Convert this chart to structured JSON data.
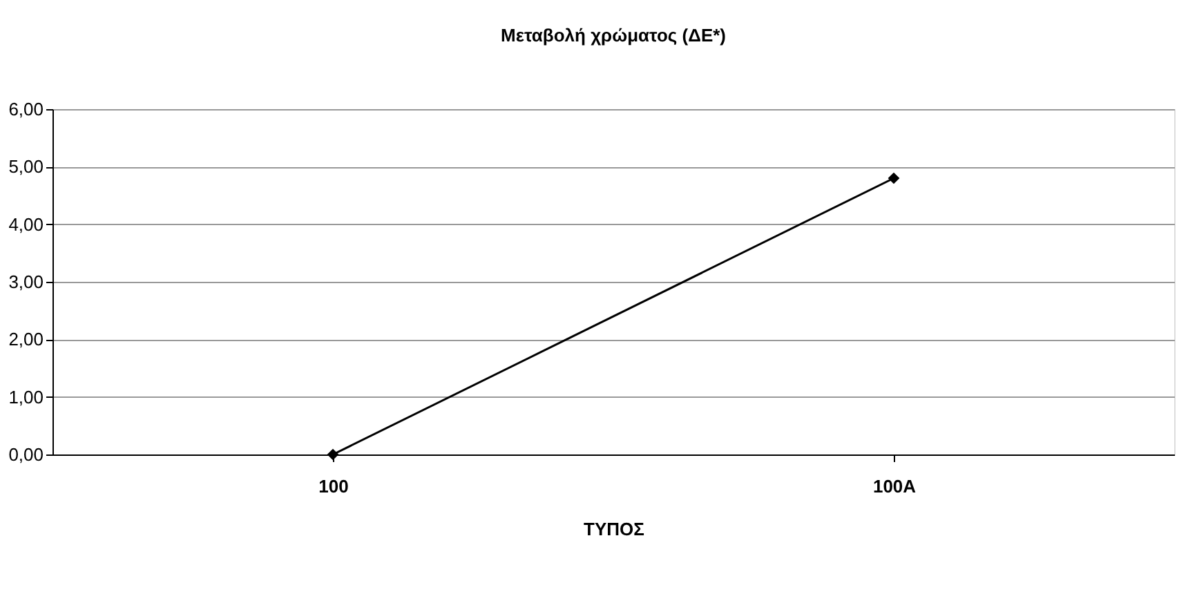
{
  "chart_data": {
    "type": "line",
    "title": "Μεταβολή χρώματος (ΔΕ*)",
    "xlabel": "ΤΥΠΟΣ",
    "categories": [
      "100",
      "100A"
    ],
    "series": [
      {
        "color": "#000000",
        "values": [
          0.0,
          4.8
        ]
      }
    ],
    "ylim": [
      0,
      6
    ],
    "yticks": [
      {
        "value": 0,
        "label": "0,00"
      },
      {
        "value": 1,
        "label": "1,00"
      },
      {
        "value": 2,
        "label": "2,00"
      },
      {
        "value": 3,
        "label": "3,00"
      },
      {
        "value": 4,
        "label": "4,00"
      },
      {
        "value": 5,
        "label": "5,00"
      },
      {
        "value": 6,
        "label": "6,00"
      }
    ],
    "grid": "y",
    "marker": "diamond",
    "line_style": "solid"
  }
}
